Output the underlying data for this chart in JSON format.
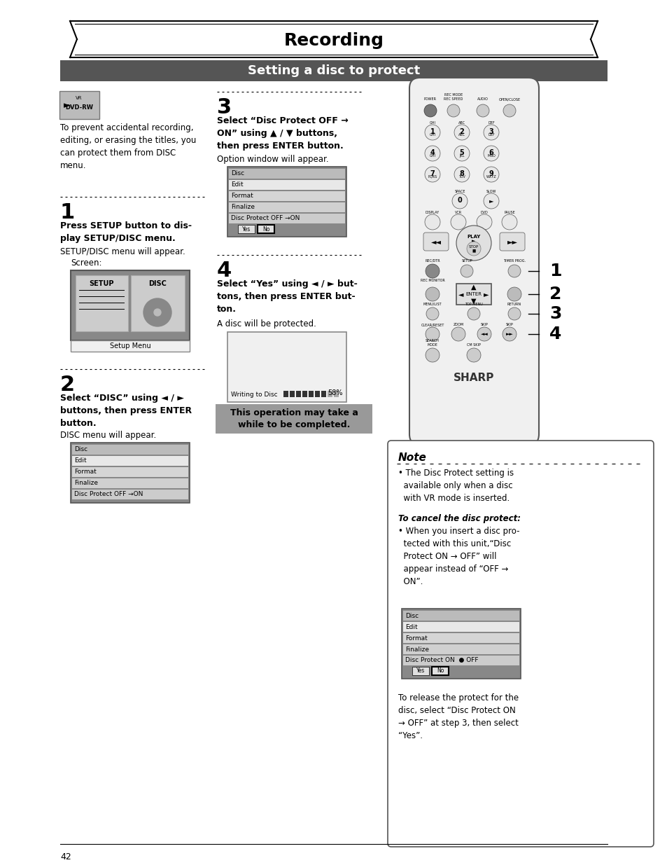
{
  "title": "Recording",
  "subtitle": "Setting a disc to protect",
  "bg_color": "#ffffff",
  "subtitle_bar_color": "#555555",
  "page_number": "42",
  "intro_text": "To prevent accidental recording,\nediting, or erasing the titles, you\ncan protect them from DISC\nmenu.",
  "step1_heading_bold": "Press SETUP button to dis-\nplay SETUP/DISC menu.",
  "step1_body": "SETUP/DISC menu will appear.\n    Screen:",
  "step2_heading_bold": "Select “DISC” using ◄ / ►\nbuttons, then press ENTER\nbutton.",
  "step2_body": "DISC menu will appear.",
  "step3_heading_bold": "Select “Disc Protect OFF →\nON” using ▲ / ▼ buttons,\nthen press ENTER button.",
  "step3_body": "Option window will appear.",
  "step4_heading_bold": "Select “Yes” using ◄ / ► but-\ntons, then press ENTER but-\nton.",
  "step4_body": "A disc will be protected.",
  "note_title": "Note",
  "note_text1": "• The Disc Protect setting is\n  available only when a disc\n  with VR mode is inserted.",
  "note_text2_italic": "To cancel the disc protect:",
  "note_text3": "• When you insert a disc pro-\n  tected with this unit,“Disc\n  Protect ON → OFF” will\n  appear instead of “OFF →\n  ON”.",
  "note_text4": "To release the protect for the\ndisc, select “Disc Protect ON\n→ OFF” at step 3, then select\n“Yes”.",
  "caution_text": "This operation may take a\nwhile to be completed.",
  "disc_menu_items_step2": [
    "Disc",
    "Edit",
    "Format",
    "Finalize",
    "Disc Protect OFF →ON"
  ],
  "disc_menu_items_step3": [
    "Disc",
    "Edit",
    "Format",
    "Finalize",
    "Disc Protect OFF →ON"
  ],
  "disc_menu_items_note": [
    "Disc",
    "Edit",
    "Format",
    "Finalize",
    "Disc Protect ON  ● OFF"
  ],
  "remote_step_labels": [
    "1",
    "2",
    "3",
    "4"
  ],
  "sharp_text": "SHARP"
}
